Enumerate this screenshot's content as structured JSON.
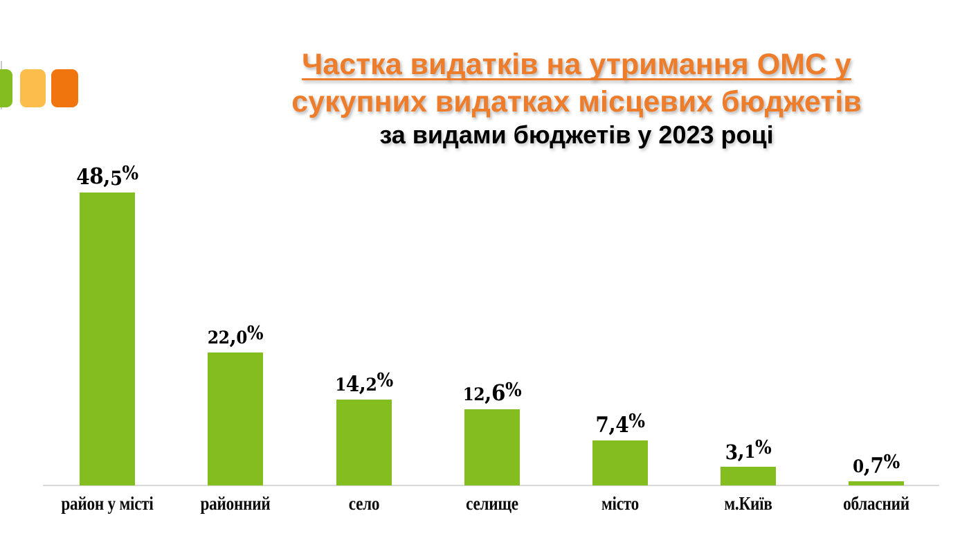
{
  "logo": {
    "squares": [
      {
        "name": "green",
        "color": "#84BD20"
      },
      {
        "name": "amber",
        "color": "#FBBE4A"
      },
      {
        "name": "orange",
        "color": "#F1750F"
      }
    ]
  },
  "title": {
    "line1": "Частка видатків на утримання ОМС у",
    "line2": "сукупних видатках місцевих бюджетів",
    "subtitle": "за видами бюджетів у 2023 році",
    "color": "#EE7D2B",
    "subtitle_color": "#000000"
  },
  "chart_data": {
    "type": "bar",
    "title": "Частка видатків на утримання ОМС у сукупних видатках місцевих бюджетів за видами бюджетів у 2023 році",
    "categories": [
      "район у місті",
      "районний",
      "село",
      "селище",
      "місто",
      "м.Київ",
      "обласний"
    ],
    "values": [
      48.5,
      22.0,
      14.2,
      12.6,
      7.4,
      3.1,
      0.7
    ],
    "value_labels": [
      "48,5%",
      "22,0%",
      "14,2%",
      "12,6%",
      "7,4%",
      "3,1%",
      "0,7%"
    ],
    "unit": "%",
    "bar_color": "#84BD20",
    "axis_color": "#D9D9D9",
    "grid": false,
    "legend": false
  }
}
